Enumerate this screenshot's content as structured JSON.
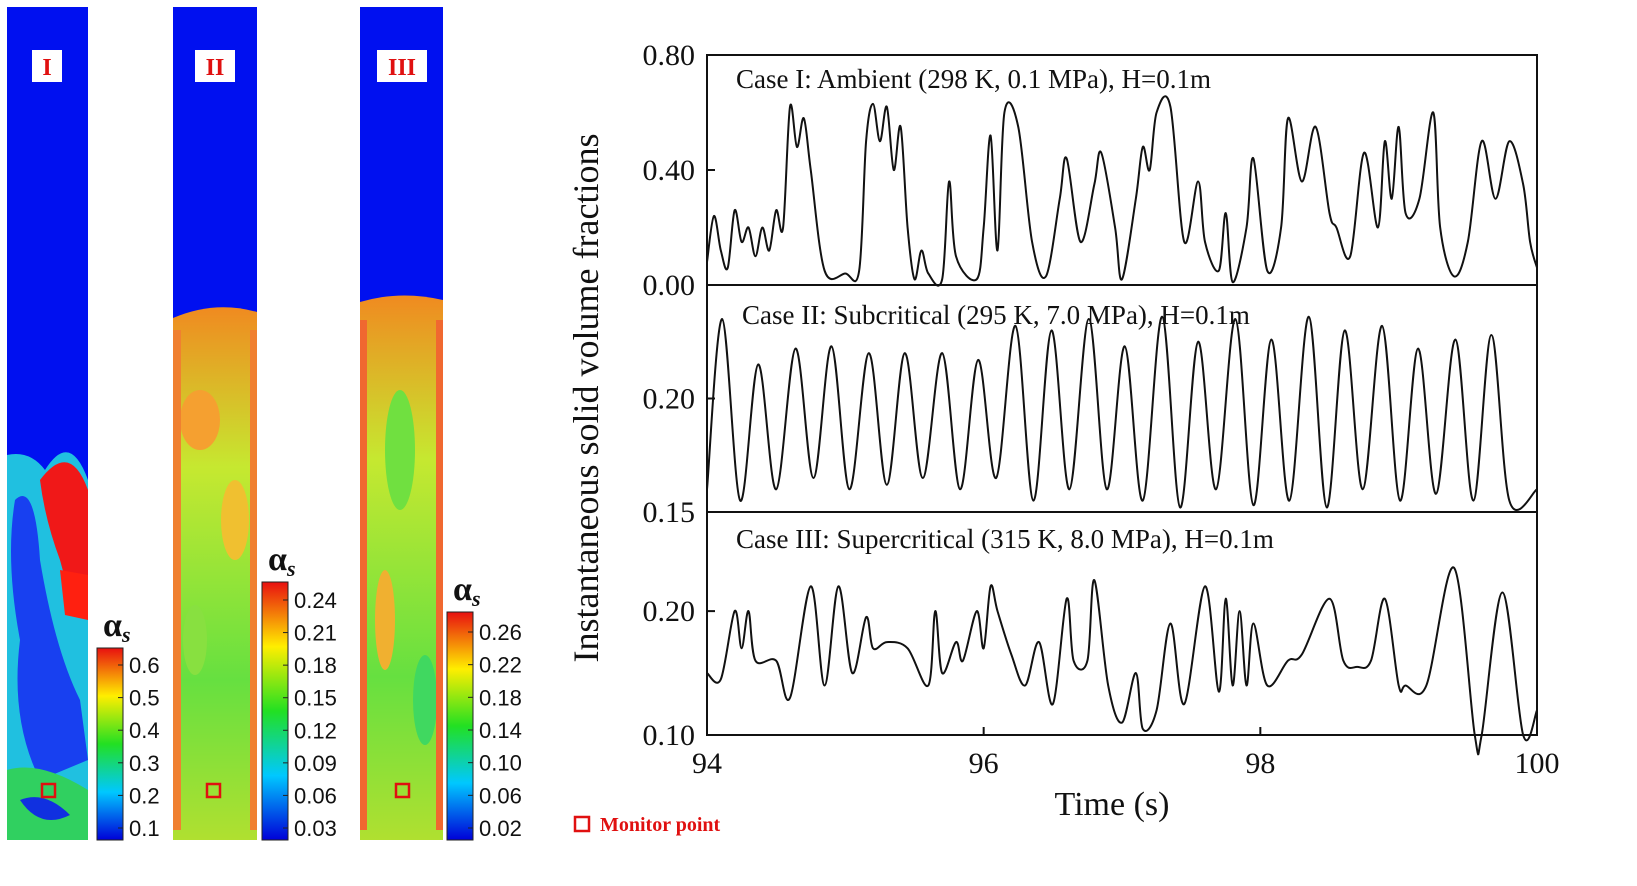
{
  "contours": [
    {
      "label": "I",
      "colorbar": {
        "symbol": "α",
        "subscript": "s",
        "ticks": [
          0.1,
          0.2,
          0.3,
          0.4,
          0.5,
          0.6
        ]
      }
    },
    {
      "label": "II",
      "colorbar": {
        "symbol": "α",
        "subscript": "s",
        "ticks": [
          0.03,
          0.06,
          0.09,
          0.12,
          0.15,
          0.18,
          0.21,
          0.24
        ]
      }
    },
    {
      "label": "III",
      "colorbar": {
        "symbol": "α",
        "subscript": "s",
        "ticks": [
          0.02,
          0.06,
          {
            "value": 0.1,
            "label": "0.10"
          },
          0.14,
          0.18,
          0.22,
          0.26
        ]
      }
    }
  ],
  "legend": "Monitor point",
  "y_label": "Instantaneous solid volume fractions",
  "chart_data": [
    {
      "type": "line",
      "title": "Case I: Ambient (298 K, 0.1 MPa), H=0.1m",
      "color": "#111111",
      "xlim": [
        94,
        100
      ],
      "ylim": [
        0,
        0.8
      ],
      "yticks": [
        {
          "value": 0,
          "label": "0.00"
        },
        {
          "value": 0.4,
          "label": "0.40"
        },
        {
          "value": 0.8,
          "label": "0.80"
        }
      ],
      "x": [
        94.0,
        94.05,
        94.1,
        94.15,
        94.2,
        94.25,
        94.3,
        94.35,
        94.4,
        94.45,
        94.5,
        94.55,
        94.6,
        94.65,
        94.7,
        94.75,
        94.85,
        95.0,
        95.1,
        95.15,
        95.2,
        95.25,
        95.3,
        95.35,
        95.4,
        95.45,
        95.5,
        95.55,
        95.6,
        95.7,
        95.75,
        95.8,
        95.95,
        96.0,
        96.05,
        96.1,
        96.15,
        96.25,
        96.35,
        96.45,
        96.55,
        96.6,
        96.7,
        96.8,
        96.85,
        96.95,
        97.0,
        97.1,
        97.15,
        97.2,
        97.25,
        97.35,
        97.45,
        97.55,
        97.6,
        97.7,
        97.75,
        97.8,
        97.9,
        97.95,
        98.05,
        98.15,
        98.2,
        98.3,
        98.4,
        98.5,
        98.55,
        98.65,
        98.75,
        98.85,
        98.9,
        98.95,
        99.0,
        99.05,
        99.15,
        99.25,
        99.3,
        99.4,
        99.5,
        99.6,
        99.7,
        99.8,
        99.9,
        99.95,
        100.0
      ],
      "series": [
        {
          "values": [
            0.08,
            0.24,
            0.12,
            0.06,
            0.26,
            0.15,
            0.2,
            0.1,
            0.2,
            0.12,
            0.26,
            0.2,
            0.62,
            0.48,
            0.58,
            0.4,
            0.05,
            0.04,
            0.05,
            0.5,
            0.63,
            0.5,
            0.62,
            0.4,
            0.55,
            0.2,
            0.02,
            0.12,
            0.04,
            0.02,
            0.36,
            0.1,
            0.02,
            0.2,
            0.52,
            0.12,
            0.6,
            0.55,
            0.15,
            0.03,
            0.3,
            0.44,
            0.15,
            0.35,
            0.46,
            0.2,
            0.02,
            0.3,
            0.48,
            0.4,
            0.6,
            0.62,
            0.15,
            0.36,
            0.15,
            0.05,
            0.25,
            0.01,
            0.2,
            0.44,
            0.05,
            0.2,
            0.58,
            0.36,
            0.55,
            0.25,
            0.2,
            0.1,
            0.46,
            0.2,
            0.5,
            0.3,
            0.55,
            0.25,
            0.3,
            0.6,
            0.2,
            0.03,
            0.15,
            0.5,
            0.3,
            0.5,
            0.35,
            0.15,
            0.06
          ]
        }
      ]
    },
    {
      "type": "line",
      "title": "Case II: Subcritical (295 K, 7.0 MPa), H=0.1m",
      "color": "#111111",
      "xlim": [
        94,
        100
      ],
      "ylim": [
        0.15,
        0.25
      ],
      "yticks": [
        {
          "value": 0.15,
          "label": "0.15"
        },
        {
          "value": 0.2,
          "label": "0.20"
        }
      ],
      "x": [
        94.0,
        94.11,
        94.24,
        94.37,
        94.5,
        94.64,
        94.77,
        94.9,
        95.03,
        95.17,
        95.3,
        95.43,
        95.56,
        95.7,
        95.83,
        95.96,
        96.09,
        96.23,
        96.36,
        96.49,
        96.62,
        96.76,
        96.89,
        97.02,
        97.15,
        97.29,
        97.42,
        97.55,
        97.68,
        97.82,
        97.95,
        98.08,
        98.21,
        98.35,
        98.48,
        98.61,
        98.74,
        98.88,
        99.01,
        99.14,
        99.27,
        99.41,
        99.54,
        99.67,
        99.8,
        100.0
      ],
      "series": [
        {
          "values": [
            0.16,
            0.235,
            0.155,
            0.215,
            0.16,
            0.222,
            0.165,
            0.223,
            0.16,
            0.22,
            0.162,
            0.22,
            0.165,
            0.22,
            0.16,
            0.217,
            0.165,
            0.232,
            0.155,
            0.23,
            0.16,
            0.235,
            0.16,
            0.223,
            0.155,
            0.236,
            0.152,
            0.225,
            0.16,
            0.235,
            0.153,
            0.226,
            0.155,
            0.236,
            0.152,
            0.23,
            0.16,
            0.232,
            0.155,
            0.222,
            0.158,
            0.226,
            0.155,
            0.228,
            0.155,
            0.16
          ]
        }
      ]
    },
    {
      "type": "line",
      "title": "Case III: Supercritical (315 K, 8.0 MPa), H=0.1m",
      "color": "#111111",
      "xlim": [
        94,
        100
      ],
      "ylim": [
        0.1,
        0.28
      ],
      "yticks": [
        {
          "value": 0.1,
          "label": "0.10"
        },
        {
          "value": 0.2,
          "label": "0.20"
        }
      ],
      "xticks": [
        94,
        96,
        98,
        100
      ],
      "x_label": "Time (s)",
      "x": [
        94.0,
        94.1,
        94.2,
        94.25,
        94.3,
        94.35,
        94.5,
        94.6,
        94.75,
        94.85,
        94.95,
        95.05,
        95.15,
        95.2,
        95.3,
        95.45,
        95.6,
        95.65,
        95.7,
        95.8,
        95.85,
        95.95,
        96.0,
        96.05,
        96.1,
        96.2,
        96.3,
        96.4,
        96.5,
        96.6,
        96.65,
        96.75,
        96.8,
        96.9,
        97.0,
        97.1,
        97.15,
        97.25,
        97.35,
        97.45,
        97.6,
        97.7,
        97.75,
        97.8,
        97.85,
        97.9,
        97.95,
        98.05,
        98.2,
        98.3,
        98.5,
        98.6,
        98.7,
        98.8,
        98.9,
        99.0,
        99.05,
        99.2,
        99.4,
        99.55,
        99.6,
        99.75,
        99.9,
        100.0
      ],
      "series": [
        {
          "values": [
            0.15,
            0.145,
            0.2,
            0.17,
            0.2,
            0.16,
            0.16,
            0.13,
            0.22,
            0.14,
            0.22,
            0.15,
            0.195,
            0.17,
            0.175,
            0.17,
            0.14,
            0.2,
            0.15,
            0.175,
            0.16,
            0.2,
            0.17,
            0.22,
            0.2,
            0.165,
            0.14,
            0.175,
            0.125,
            0.21,
            0.16,
            0.16,
            0.225,
            0.14,
            0.11,
            0.15,
            0.105,
            0.12,
            0.19,
            0.125,
            0.22,
            0.135,
            0.21,
            0.14,
            0.2,
            0.14,
            0.19,
            0.14,
            0.16,
            0.165,
            0.21,
            0.16,
            0.155,
            0.16,
            0.21,
            0.14,
            0.14,
            0.14,
            0.235,
            0.1,
            0.1,
            0.215,
            0.1,
            0.12
          ]
        }
      ]
    }
  ]
}
